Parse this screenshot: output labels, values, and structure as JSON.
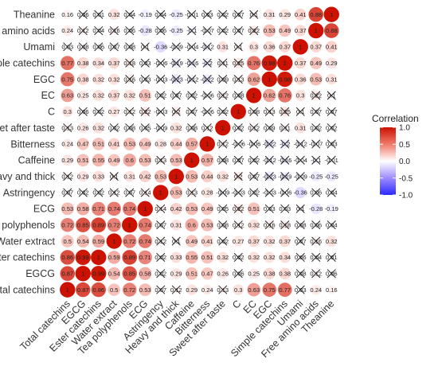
{
  "chart_data": {
    "type": "heatmap",
    "variables": [
      "Total catechins",
      "EGCG",
      "Ester catechins",
      "Water extract",
      "Tea polyphenols",
      "ECG",
      "Astringency",
      "Heavy and thick",
      "Caffeine",
      "Bitterness",
      "Sweet after taste",
      "C",
      "EC",
      "EGC",
      "Simple catechins",
      "Umami",
      "Free amino acids",
      "Theanine"
    ],
    "row_labels": [
      "Theanine",
      "Free amino acids",
      "Umami",
      "Simple catechins",
      "EGC",
      "EC",
      "C",
      "Sweet after taste",
      "Bitterness",
      "Caffeine",
      "Heavy and thick",
      "Astringency",
      "ECG",
      "Tea polyphenols",
      "Water extract",
      "Ester catechins",
      "EGCG",
      "Total catechins"
    ],
    "col_labels": [
      "Total catechins",
      "EGCG",
      "Ester catechins",
      "Water extract",
      "Tea polyphenols",
      "ECG",
      "Astringency",
      "Heavy and thick",
      "Caffeine",
      "Bitterness",
      "Sweet after taste",
      "C",
      "EC",
      "EGC",
      "Simple catechins",
      "Umami",
      "Free amino acids",
      "Theanine"
    ],
    "matrix": [
      [
        1,
        0.87,
        0.86,
        0.5,
        0.72,
        0.53,
        0.07,
        0.12,
        0.29,
        0.24,
        0.13,
        0.3,
        0.63,
        0.75,
        0.77,
        0.03,
        0.24,
        0.16
      ],
      [
        0.87,
        1,
        0.99,
        0.54,
        0.85,
        0.58,
        0.02,
        0.29,
        0.51,
        0.47,
        0.26,
        0.06,
        0.25,
        0.38,
        0.38,
        0.08,
        0.12,
        0.06
      ],
      [
        0.86,
        0.99,
        1,
        0.59,
        0.89,
        0.71,
        0.02,
        0.33,
        0.55,
        0.51,
        0.32,
        0.02,
        0.32,
        0.32,
        0.34,
        0.06,
        0.04,
        0.01
      ],
      [
        0.5,
        0.54,
        0.59,
        1,
        0.72,
        0.74,
        0.12,
        0.1,
        0.49,
        0.41,
        0.02,
        0.27,
        0.37,
        0.32,
        0.37,
        0.07,
        0.16,
        0.32
      ],
      [
        0.72,
        0.85,
        0.89,
        0.72,
        1,
        0.74,
        0.07,
        0.31,
        0.6,
        0.53,
        0.08,
        0.12,
        0.32,
        0.16,
        0.18,
        0.08,
        0.06,
        0.04
      ],
      [
        0.53,
        0.58,
        0.71,
        0.74,
        0.74,
        1,
        0.14,
        0.42,
        0.53,
        0.49,
        0.05,
        0.22,
        0.51,
        0.03,
        0.03,
        0.1,
        -0.28,
        -0.19
      ],
      [
        0.07,
        0.02,
        0.02,
        0.12,
        0.07,
        0.14,
        1,
        0.53,
        0.13,
        0.28,
        -0.09,
        -0.03,
        0.02,
        -0.03,
        -0.06,
        -0.36,
        0.06,
        0.04
      ],
      [
        0.12,
        0.29,
        0.33,
        0.1,
        0.31,
        0.42,
        0.53,
        1,
        0.53,
        0.44,
        0.32,
        0.2,
        0.07,
        -0.23,
        -0.19,
        -0.09,
        -0.25,
        -0.25
      ],
      [
        0.29,
        0.51,
        0.55,
        0.49,
        0.6,
        0.53,
        0.13,
        0.53,
        1,
        0.57,
        0.08,
        0.07,
        0.02,
        -0.12,
        -0.16,
        -0.04,
        -0.1,
        -0.01
      ],
      [
        0.24,
        0.47,
        0.51,
        0.41,
        0.53,
        0.49,
        0.28,
        0.44,
        0.57,
        1,
        0.12,
        -0.06,
        -0.06,
        -0.22,
        -0.2,
        -0.12,
        -0.07,
        0.03
      ],
      [
        0.13,
        0.26,
        0.32,
        0.02,
        0.08,
        0.05,
        -0.09,
        0.32,
        0.08,
        0.12,
        1,
        0.02,
        0.12,
        0.09,
        0.11,
        0.31,
        0.02,
        0.02
      ],
      [
        0.3,
        0.06,
        0.02,
        0.27,
        0.12,
        0.22,
        -0.03,
        0.2,
        0.07,
        -0.06,
        0.02,
        1,
        0.08,
        0.13,
        0.25,
        0.1,
        0.07,
        0.07
      ],
      [
        0.63,
        0.25,
        0.32,
        0.37,
        0.32,
        0.51,
        0.02,
        0.07,
        0.02,
        -0.06,
        0.12,
        0.08,
        1,
        0.62,
        0.76,
        0.3,
        0.22,
        0.1
      ],
      [
        0.75,
        0.38,
        0.32,
        0.32,
        0.16,
        0.03,
        -0.03,
        -0.23,
        -0.12,
        -0.22,
        0.09,
        0.13,
        0.62,
        1,
        0.98,
        0.36,
        0.53,
        0.31
      ],
      [
        0.77,
        0.38,
        0.34,
        0.37,
        0.18,
        0.03,
        -0.06,
        -0.19,
        -0.16,
        -0.2,
        0.11,
        0.25,
        0.76,
        0.98,
        1,
        0.37,
        0.49,
        0.29
      ],
      [
        0.03,
        0.08,
        0.06,
        0.07,
        0.08,
        0.1,
        -0.36,
        -0.09,
        -0.04,
        -0.12,
        0.31,
        0.1,
        0.3,
        0.36,
        0.37,
        1,
        0.37,
        0.41
      ],
      [
        0.24,
        0.12,
        0.04,
        0.16,
        0.06,
        -0.28,
        0.06,
        -0.25,
        -0.1,
        -0.07,
        0.02,
        0.07,
        0.22,
        0.53,
        0.49,
        0.37,
        1,
        0.88
      ],
      [
        0.16,
        0.06,
        0.01,
        0.32,
        0.04,
        -0.19,
        0.04,
        -0.25,
        -0.01,
        0.03,
        0.02,
        0.07,
        0.1,
        0.31,
        0.29,
        0.41,
        0.88,
        1
      ]
    ],
    "insignificant_pairs": [
      [
        "Total catechins",
        "Astringency"
      ],
      [
        "Total catechins",
        "Heavy and thick"
      ],
      [
        "Total catechins",
        "Sweet after taste"
      ],
      [
        "Total catechins",
        "Umami"
      ],
      [
        "EGCG",
        "Astringency"
      ],
      [
        "EGCG",
        "C"
      ],
      [
        "EGCG",
        "Umami"
      ],
      [
        "EGCG",
        "Free amino acids"
      ],
      [
        "EGCG",
        "Theanine"
      ],
      [
        "Ester catechins",
        "Astringency"
      ],
      [
        "Ester catechins",
        "C"
      ],
      [
        "Ester catechins",
        "Umami"
      ],
      [
        "Ester catechins",
        "Free amino acids"
      ],
      [
        "Ester catechins",
        "Theanine"
      ],
      [
        "Water extract",
        "Astringency"
      ],
      [
        "Water extract",
        "Heavy and thick"
      ],
      [
        "Water extract",
        "Sweet after taste"
      ],
      [
        "Water extract",
        "Umami"
      ],
      [
        "Water extract",
        "Free amino acids"
      ],
      [
        "Tea polyphenols",
        "Astringency"
      ],
      [
        "Tea polyphenols",
        "Sweet after taste"
      ],
      [
        "Tea polyphenols",
        "C"
      ],
      [
        "Tea polyphenols",
        "EGC"
      ],
      [
        "Tea polyphenols",
        "Simple catechins"
      ],
      [
        "Tea polyphenols",
        "Umami"
      ],
      [
        "Tea polyphenols",
        "Free amino acids"
      ],
      [
        "Tea polyphenols",
        "Theanine"
      ],
      [
        "ECG",
        "Astringency"
      ],
      [
        "ECG",
        "Sweet after taste"
      ],
      [
        "ECG",
        "C"
      ],
      [
        "ECG",
        "EGC"
      ],
      [
        "ECG",
        "Simple catechins"
      ],
      [
        "ECG",
        "Umami"
      ],
      [
        "Astringency",
        "Caffeine"
      ],
      [
        "Astringency",
        "Sweet after taste"
      ],
      [
        "Astringency",
        "C"
      ],
      [
        "Astringency",
        "EC"
      ],
      [
        "Astringency",
        "EGC"
      ],
      [
        "Astringency",
        "Simple catechins"
      ],
      [
        "Astringency",
        "Free amino acids"
      ],
      [
        "Astringency",
        "Theanine"
      ],
      [
        "Heavy and thick",
        "C"
      ],
      [
        "Heavy and thick",
        "EC"
      ],
      [
        "Heavy and thick",
        "EGC"
      ],
      [
        "Heavy and thick",
        "Simple catechins"
      ],
      [
        "Heavy and thick",
        "Umami"
      ],
      [
        "Caffeine",
        "Sweet after taste"
      ],
      [
        "Caffeine",
        "C"
      ],
      [
        "Caffeine",
        "EC"
      ],
      [
        "Caffeine",
        "EGC"
      ],
      [
        "Caffeine",
        "Simple catechins"
      ],
      [
        "Caffeine",
        "Umami"
      ],
      [
        "Caffeine",
        "Free amino acids"
      ],
      [
        "Caffeine",
        "Theanine"
      ],
      [
        "Bitterness",
        "Sweet after taste"
      ],
      [
        "Bitterness",
        "C"
      ],
      [
        "Bitterness",
        "EC"
      ],
      [
        "Bitterness",
        "EGC"
      ],
      [
        "Bitterness",
        "Simple catechins"
      ],
      [
        "Bitterness",
        "Umami"
      ],
      [
        "Bitterness",
        "Free amino acids"
      ],
      [
        "Bitterness",
        "Theanine"
      ],
      [
        "Sweet after taste",
        "C"
      ],
      [
        "Sweet after taste",
        "EC"
      ],
      [
        "Sweet after taste",
        "EGC"
      ],
      [
        "Sweet after taste",
        "Simple catechins"
      ],
      [
        "Sweet after taste",
        "Free amino acids"
      ],
      [
        "Sweet after taste",
        "Theanine"
      ],
      [
        "C",
        "EC"
      ],
      [
        "C",
        "EGC"
      ],
      [
        "C",
        "Simple catechins"
      ],
      [
        "C",
        "Umami"
      ],
      [
        "C",
        "Free amino acids"
      ],
      [
        "C",
        "Theanine"
      ],
      [
        "EC",
        "Free amino acids"
      ],
      [
        "EC",
        "Theanine"
      ]
    ],
    "legend": {
      "title": "Correlation",
      "ticks": [
        1.0,
        0.5,
        0.0,
        -0.5,
        -1.0
      ],
      "tick_labels": [
        "1.0",
        "0.5",
        "0.0",
        "-0.5",
        "-1.0"
      ],
      "range": [
        -1,
        1
      ],
      "placement": "right"
    },
    "colors": {
      "negative": "#2a2aff",
      "neutral": "#ffffff",
      "positive": "#cc1100"
    },
    "grid": false
  }
}
